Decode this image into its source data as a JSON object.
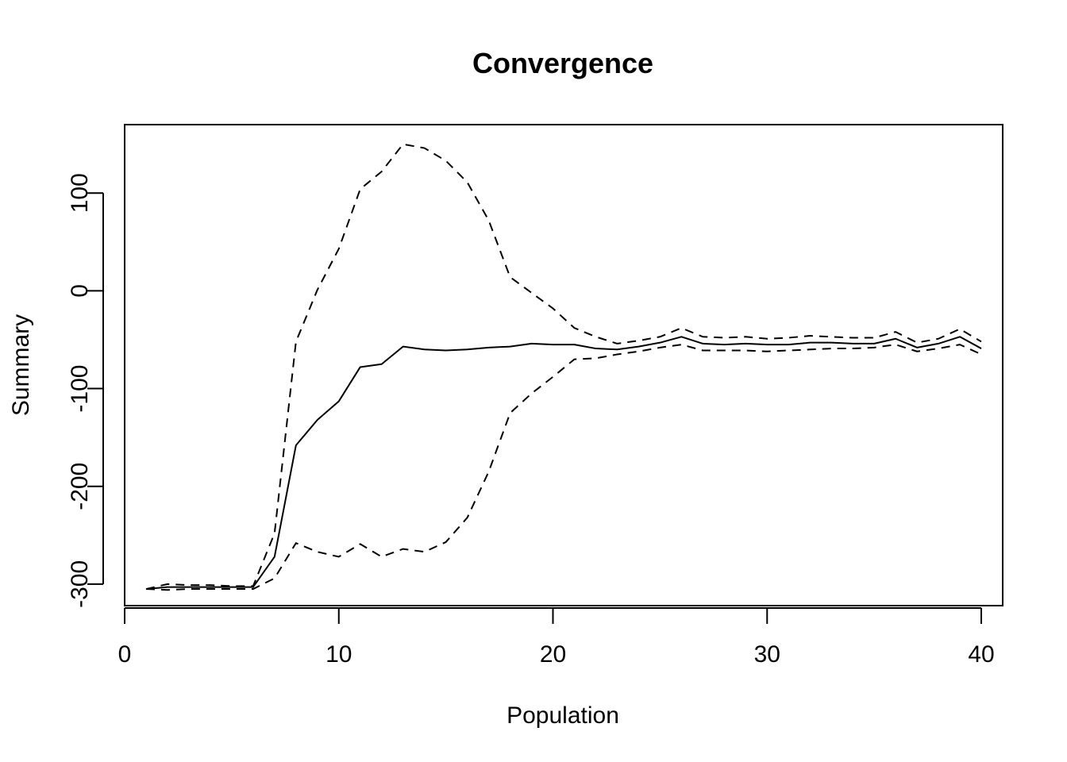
{
  "chart_data": {
    "type": "line",
    "title": "Convergence",
    "xlabel": "Population",
    "ylabel": "Summary",
    "xlim": [
      0,
      41
    ],
    "ylim": [
      -322,
      170
    ],
    "grid": false,
    "x_ticks": [
      0,
      10,
      20,
      30,
      40
    ],
    "y_ticks": [
      -300,
      -200,
      -100,
      0,
      100
    ],
    "x": [
      1,
      2,
      3,
      4,
      5,
      6,
      7,
      8,
      9,
      10,
      11,
      12,
      13,
      14,
      15,
      16,
      17,
      18,
      19,
      20,
      21,
      22,
      23,
      24,
      25,
      26,
      27,
      28,
      29,
      30,
      31,
      32,
      33,
      34,
      35,
      36,
      37,
      38,
      39,
      40
    ],
    "series": [
      {
        "style": "solid",
        "values": [
          -305,
          -303,
          -303,
          -303,
          -303,
          -303,
          -272,
          -158,
          -132,
          -113,
          -78,
          -75,
          -57,
          -60,
          -61,
          -60,
          -58,
          -57,
          -54,
          -55,
          -55,
          -59,
          -60,
          -57,
          -53,
          -47,
          -54,
          -55,
          -54,
          -55,
          -55,
          -53,
          -53,
          -54,
          -54,
          -49,
          -58,
          -54,
          -47,
          -59
        ]
      },
      {
        "style": "dashed",
        "values": [
          -305,
          -300,
          -301,
          -301,
          -302,
          -302,
          -248,
          -52,
          1,
          43,
          104,
          122,
          150,
          146,
          133,
          111,
          72,
          14,
          -2,
          -18,
          -38,
          -47,
          -54,
          -51,
          -47,
          -38,
          -47,
          -48,
          -47,
          -49,
          -48,
          -46,
          -47,
          -48,
          -48,
          -42,
          -53,
          -49,
          -39,
          -52
        ]
      },
      {
        "style": "dashed",
        "values": [
          -305,
          -306,
          -305,
          -305,
          -305,
          -305,
          -294,
          -258,
          -267,
          -272,
          -259,
          -272,
          -264,
          -267,
          -257,
          -232,
          -185,
          -125,
          -105,
          -88,
          -70,
          -69,
          -65,
          -62,
          -58,
          -55,
          -61,
          -61,
          -61,
          -62,
          -61,
          -60,
          -59,
          -59,
          -58,
          -55,
          -62,
          -59,
          -55,
          -65
        ]
      }
    ]
  }
}
